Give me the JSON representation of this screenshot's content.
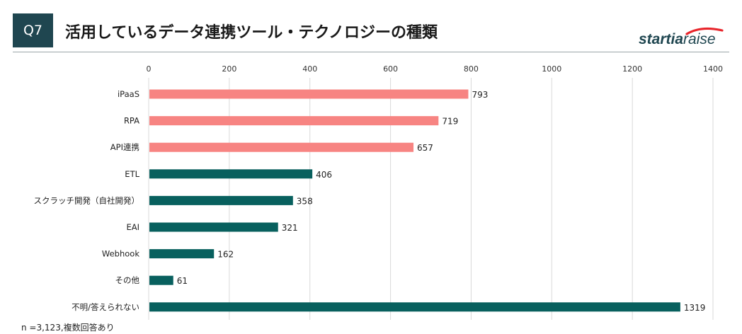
{
  "header": {
    "badge": "Q7",
    "title": "活用しているデータ連携ツール・テクノロジーの種類",
    "logo_text": "startiaraise"
  },
  "footnote": "n =3,123,複数回答あり",
  "colors": {
    "badge_bg": "#1f4650",
    "highlight": "#f78482",
    "base": "#08605e",
    "grid": "#d9d9d9"
  },
  "chart_data": {
    "type": "bar",
    "orientation": "horizontal",
    "title": "活用しているデータ連携ツール・テクノロジーの種類",
    "categories": [
      "iPaaS",
      "RPA",
      "API連携",
      "ETL",
      "スクラッチ開発（自社開発）",
      "EAI",
      "Webhook",
      "その他",
      "不明/答えられない"
    ],
    "values": [
      793,
      719,
      657,
      406,
      358,
      321,
      162,
      61,
      1319
    ],
    "highlighted": [
      true,
      true,
      true,
      false,
      false,
      false,
      false,
      false,
      false
    ],
    "xlim": [
      0,
      1400
    ],
    "xticks": [
      0,
      200,
      400,
      600,
      800,
      1000,
      1200,
      1400
    ],
    "axis_position": "top",
    "gridlines": true,
    "data_labels": true
  }
}
